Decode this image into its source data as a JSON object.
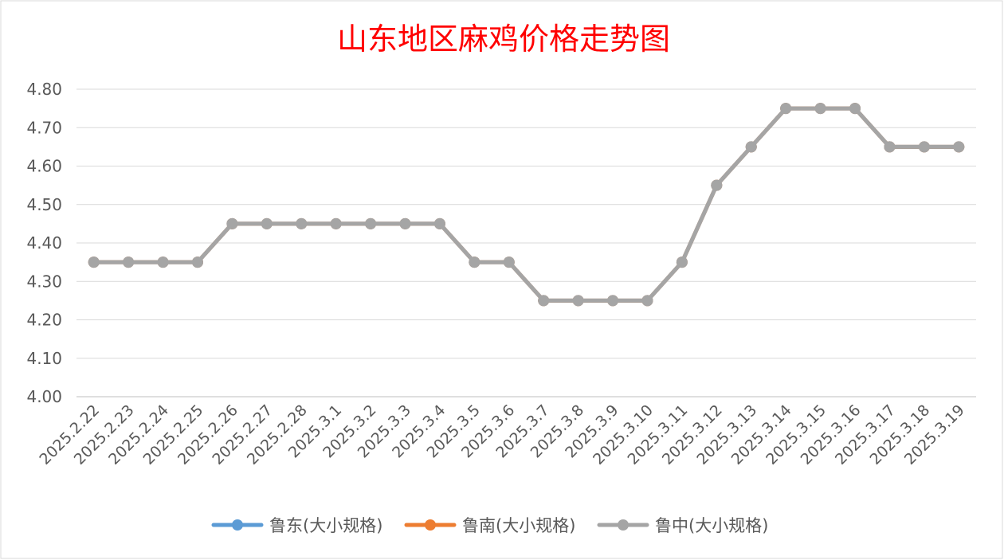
{
  "chart_data": {
    "type": "line",
    "title": "山东地区麻鸡价格走势图",
    "xlabel": "",
    "ylabel": "",
    "categories": [
      "2025.2.22",
      "2025.2.23",
      "2025.2.24",
      "2025.2.25",
      "2025.2.26",
      "2025.2.27",
      "2025.2.28",
      "2025.3.1",
      "2025.3.2",
      "2025.3.3",
      "2025.3.4",
      "2025.3.5",
      "2025.3.6",
      "2025.3.7",
      "2025.3.8",
      "2025.3.9",
      "2025.3.10",
      "2025.3.11",
      "2025.3.12",
      "2025.3.13",
      "2025.3.14",
      "2025.3.15",
      "2025.3.16",
      "2025.3.17",
      "2025.3.18",
      "2025.3.19"
    ],
    "ylim": [
      4.0,
      4.8
    ],
    "yticks": [
      "4.00",
      "4.10",
      "4.20",
      "4.30",
      "4.40",
      "4.50",
      "4.60",
      "4.70",
      "4.80"
    ],
    "grid": true,
    "legend_position": "bottom",
    "series": [
      {
        "name": "鲁东(大小规格)",
        "color": "#5b9bd5",
        "values": [
          4.35,
          4.35,
          4.35,
          4.35,
          4.45,
          4.45,
          4.45,
          4.45,
          4.45,
          4.45,
          4.45,
          4.35,
          4.35,
          4.25,
          4.25,
          4.25,
          4.25,
          4.35,
          4.55,
          4.65,
          4.75,
          4.75,
          4.75,
          4.65,
          4.65,
          4.65
        ]
      },
      {
        "name": "鲁南(大小规格)",
        "color": "#ed7d31",
        "values": [
          4.35,
          4.35,
          4.35,
          4.35,
          4.45,
          4.45,
          4.45,
          4.45,
          4.45,
          4.45,
          4.45,
          4.35,
          4.35,
          4.25,
          4.25,
          4.25,
          4.25,
          4.35,
          4.55,
          4.65,
          4.75,
          4.75,
          4.75,
          4.65,
          4.65,
          4.65
        ]
      },
      {
        "name": "鲁中(大小规格)",
        "color": "#a5a5a5",
        "values": [
          4.35,
          4.35,
          4.35,
          4.35,
          4.45,
          4.45,
          4.45,
          4.45,
          4.45,
          4.45,
          4.45,
          4.35,
          4.35,
          4.25,
          4.25,
          4.25,
          4.25,
          4.35,
          4.55,
          4.65,
          4.75,
          4.75,
          4.75,
          4.65,
          4.65,
          4.65
        ]
      }
    ]
  }
}
